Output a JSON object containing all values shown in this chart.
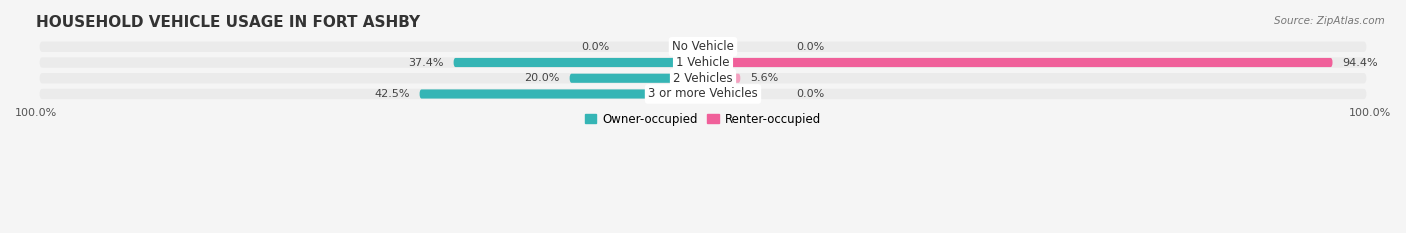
{
  "title": "HOUSEHOLD VEHICLE USAGE IN FORT ASHBY",
  "source": "Source: ZipAtlas.com",
  "categories": [
    "No Vehicle",
    "1 Vehicle",
    "2 Vehicles",
    "3 or more Vehicles"
  ],
  "owner_values": [
    0.0,
    37.4,
    20.0,
    42.5
  ],
  "renter_values": [
    0.0,
    94.4,
    5.6,
    0.0
  ],
  "owner_color": "#35B5B5",
  "renter_color": "#F0609A",
  "owner_color_light": "#7DD4D4",
  "renter_color_light": "#F4A0C0",
  "row_bg_color": "#EBEBEB",
  "bg_color": "#F5F5F5",
  "xlim": 100.0,
  "figsize": [
    14.06,
    2.33
  ],
  "dpi": 100,
  "legend_owner": "Owner-occupied",
  "legend_renter": "Renter-occupied",
  "title_fontsize": 11,
  "label_fontsize": 8.5,
  "pct_fontsize": 8.0
}
